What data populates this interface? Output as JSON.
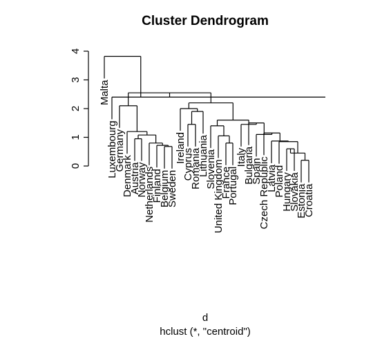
{
  "chart_data": {
    "type": "dendrogram",
    "title": "Cluster Dendrogram",
    "xlabel": "d",
    "subtitle": "hclust (*, \"centroid\")",
    "ylabel": "",
    "yticks": [
      0,
      1,
      2,
      3,
      4
    ],
    "ylim": [
      0,
      4
    ],
    "grid": false,
    "leaves": [
      "Malta",
      "Luxembourg",
      "Germany",
      "Denmark",
      "Austria",
      "Norway",
      "Netherlands",
      "Finland",
      "Belgium",
      "Sweden",
      "Ireland",
      "Cyprus",
      "Romania",
      "Lithuania",
      "Slovenia",
      "United Kingdom",
      "France",
      "Portugal",
      "Italy",
      "Bulgaria",
      "Spain",
      "Czech Republic",
      "Latvia",
      "Poland",
      "Hungary",
      "Slovakia",
      "Estonia",
      "Croatia"
    ],
    "merges": [
      {
        "id": "m1",
        "left": "Belgium",
        "right": "Sweden",
        "height": 0.68
      },
      {
        "id": "m2",
        "left": "Finland",
        "right": "m1",
        "height": 0.72
      },
      {
        "id": "m3",
        "left": "Netherlands",
        "right": "m2",
        "height": 0.8
      },
      {
        "id": "m4",
        "left": "Austria",
        "right": "Norway",
        "height": 0.95
      },
      {
        "id": "m5",
        "left": "m4",
        "right": "m3",
        "height": 1.08
      },
      {
        "id": "m6",
        "left": "Denmark",
        "right": "m5",
        "height": 1.2
      },
      {
        "id": "m7",
        "left": "Germany",
        "right": "m6",
        "height": 2.1
      },
      {
        "id": "m8",
        "left": "Cyprus",
        "right": "Romania",
        "height": 1.45
      },
      {
        "id": "m9",
        "left": "m8",
        "right": "Lithuania",
        "height": 1.9
      },
      {
        "id": "m10",
        "left": "Ireland",
        "right": "m9",
        "height": 2.0
      },
      {
        "id": "m11",
        "left": "France",
        "right": "Portugal",
        "height": 0.8
      },
      {
        "id": "m12",
        "left": "United Kingdom",
        "right": "m11",
        "height": 1.05
      },
      {
        "id": "m13",
        "left": "Slovenia",
        "right": "m12",
        "height": 1.4
      },
      {
        "id": "m14",
        "left": "Hungary",
        "right": "Slovakia",
        "height": 0.6
      },
      {
        "id": "m15",
        "left": "Estonia",
        "right": "Croatia",
        "height": 0.2
      },
      {
        "id": "m16",
        "left": "m14",
        "right": "m15",
        "height": 0.45
      },
      {
        "id": "m17",
        "left": "Poland",
        "right": "m16",
        "height": 0.85
      },
      {
        "id": "m18",
        "left": "Latvia",
        "right": "m17",
        "height": 0.87
      },
      {
        "id": "m19",
        "left": "Czech Republic",
        "right": "m18",
        "height": 1.15
      },
      {
        "id": "m20",
        "left": "Spain",
        "right": "m19",
        "height": 1.1
      },
      {
        "id": "m21",
        "left": "Bulgaria",
        "right": "m20",
        "height": 1.5
      },
      {
        "id": "m22",
        "left": "Italy",
        "right": "m21",
        "height": 1.45
      },
      {
        "id": "m23",
        "left": "m13",
        "right": "m22",
        "height": 1.6
      },
      {
        "id": "m24",
        "left": "m10",
        "right": "m23",
        "height": 2.2
      },
      {
        "id": "m25",
        "left": "m7",
        "right": "m24",
        "height": 2.55
      },
      {
        "id": "m26",
        "left": "Luxembourg",
        "right": "m25",
        "height": 2.4
      },
      {
        "id": "m27",
        "left": "Malta",
        "right": "m26",
        "height": 3.82
      }
    ]
  }
}
